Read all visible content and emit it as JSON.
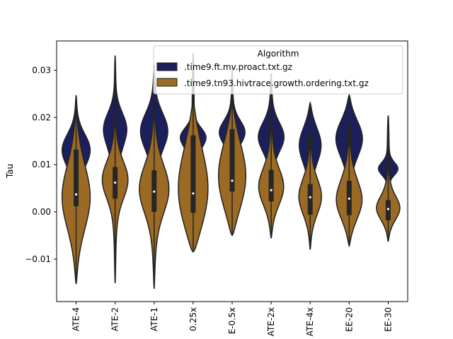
{
  "chart_data": {
    "type": "violin",
    "title": "",
    "xlabel": "",
    "ylabel": "Tau",
    "ylim": [
      -0.019,
      0.0362
    ],
    "yticks": [
      -0.01,
      0.0,
      0.01,
      0.02,
      0.03
    ],
    "ytick_labels": [
      "−0.01",
      "0.00",
      "0.01",
      "0.02",
      "0.03"
    ],
    "categories": [
      "ATE-4",
      "ATE-2",
      "ATE-1",
      "0.25x",
      "E-0.5x",
      "ATE-2x",
      "ATE-4x",
      "EE-20",
      "EE-30"
    ],
    "legend": {
      "title": "Algorithm",
      "position": "upper right"
    },
    "grid": false,
    "series": [
      {
        "name": ".time9.ft.mv.proact.txt.gz",
        "color": "#1b1f5c",
        "min": [
          -0.0002,
          -0.0004,
          -0.0003,
          -0.0002,
          0.0003,
          0.0005,
          0.0009,
          0.0008,
          0.0048
        ],
        "max": [
          0.0247,
          0.0331,
          0.0312,
          0.0336,
          0.0307,
          0.0294,
          0.0231,
          0.0248,
          0.0204
        ],
        "q1": [
          0.008,
          0.0112,
          0.0118,
          0.0128,
          0.0132,
          0.0128,
          0.0096,
          0.0115,
          0.0078
        ],
        "median": [
          0.011,
          0.0135,
          0.0156,
          0.0131,
          0.0162,
          0.0154,
          0.0143,
          0.0158,
          0.0086
        ],
        "q3": [
          0.0138,
          0.0171,
          0.0183,
          0.0162,
          0.0174,
          0.018,
          0.0162,
          0.0182,
          0.0101
        ],
        "mode": [
          0.0135,
          0.018,
          0.0175,
          0.016,
          0.017,
          0.016,
          0.0145,
          0.016,
          0.009
        ],
        "maxwidth": [
          0.72,
          0.6,
          0.7,
          0.66,
          0.66,
          0.66,
          0.56,
          0.68,
          0.5
        ]
      },
      {
        "name": ".time9.tn93.hivtrace.growth.ordering.txt.gz",
        "color": "#9b6a24",
        "min": [
          -0.0153,
          -0.0151,
          -0.0163,
          -0.0085,
          -0.005,
          -0.0056,
          -0.008,
          -0.0072,
          -0.0063
        ],
        "max": [
          0.022,
          0.0255,
          0.025,
          0.0232,
          0.0232,
          0.0222,
          0.0178,
          0.0175,
          0.0135
        ],
        "q1": [
          0.0012,
          0.0028,
          0.0,
          -0.0002,
          0.0043,
          0.0022,
          -0.0006,
          -0.0007,
          -0.0018
        ],
        "median": [
          0.0037,
          0.0062,
          0.0043,
          0.0039,
          0.0066,
          0.0046,
          0.0031,
          0.0028,
          0.0006
        ],
        "q3": [
          0.0132,
          0.0095,
          0.0088,
          0.0162,
          0.0175,
          0.0089,
          0.0059,
          0.0066,
          0.0025
        ],
        "mode": [
          0.003,
          0.007,
          0.005,
          0.0035,
          0.007,
          0.005,
          0.003,
          0.002,
          0.0005
        ],
        "maxwidth": [
          0.72,
          0.66,
          0.76,
          0.76,
          0.7,
          0.64,
          0.58,
          0.66,
          0.6
        ]
      }
    ]
  }
}
